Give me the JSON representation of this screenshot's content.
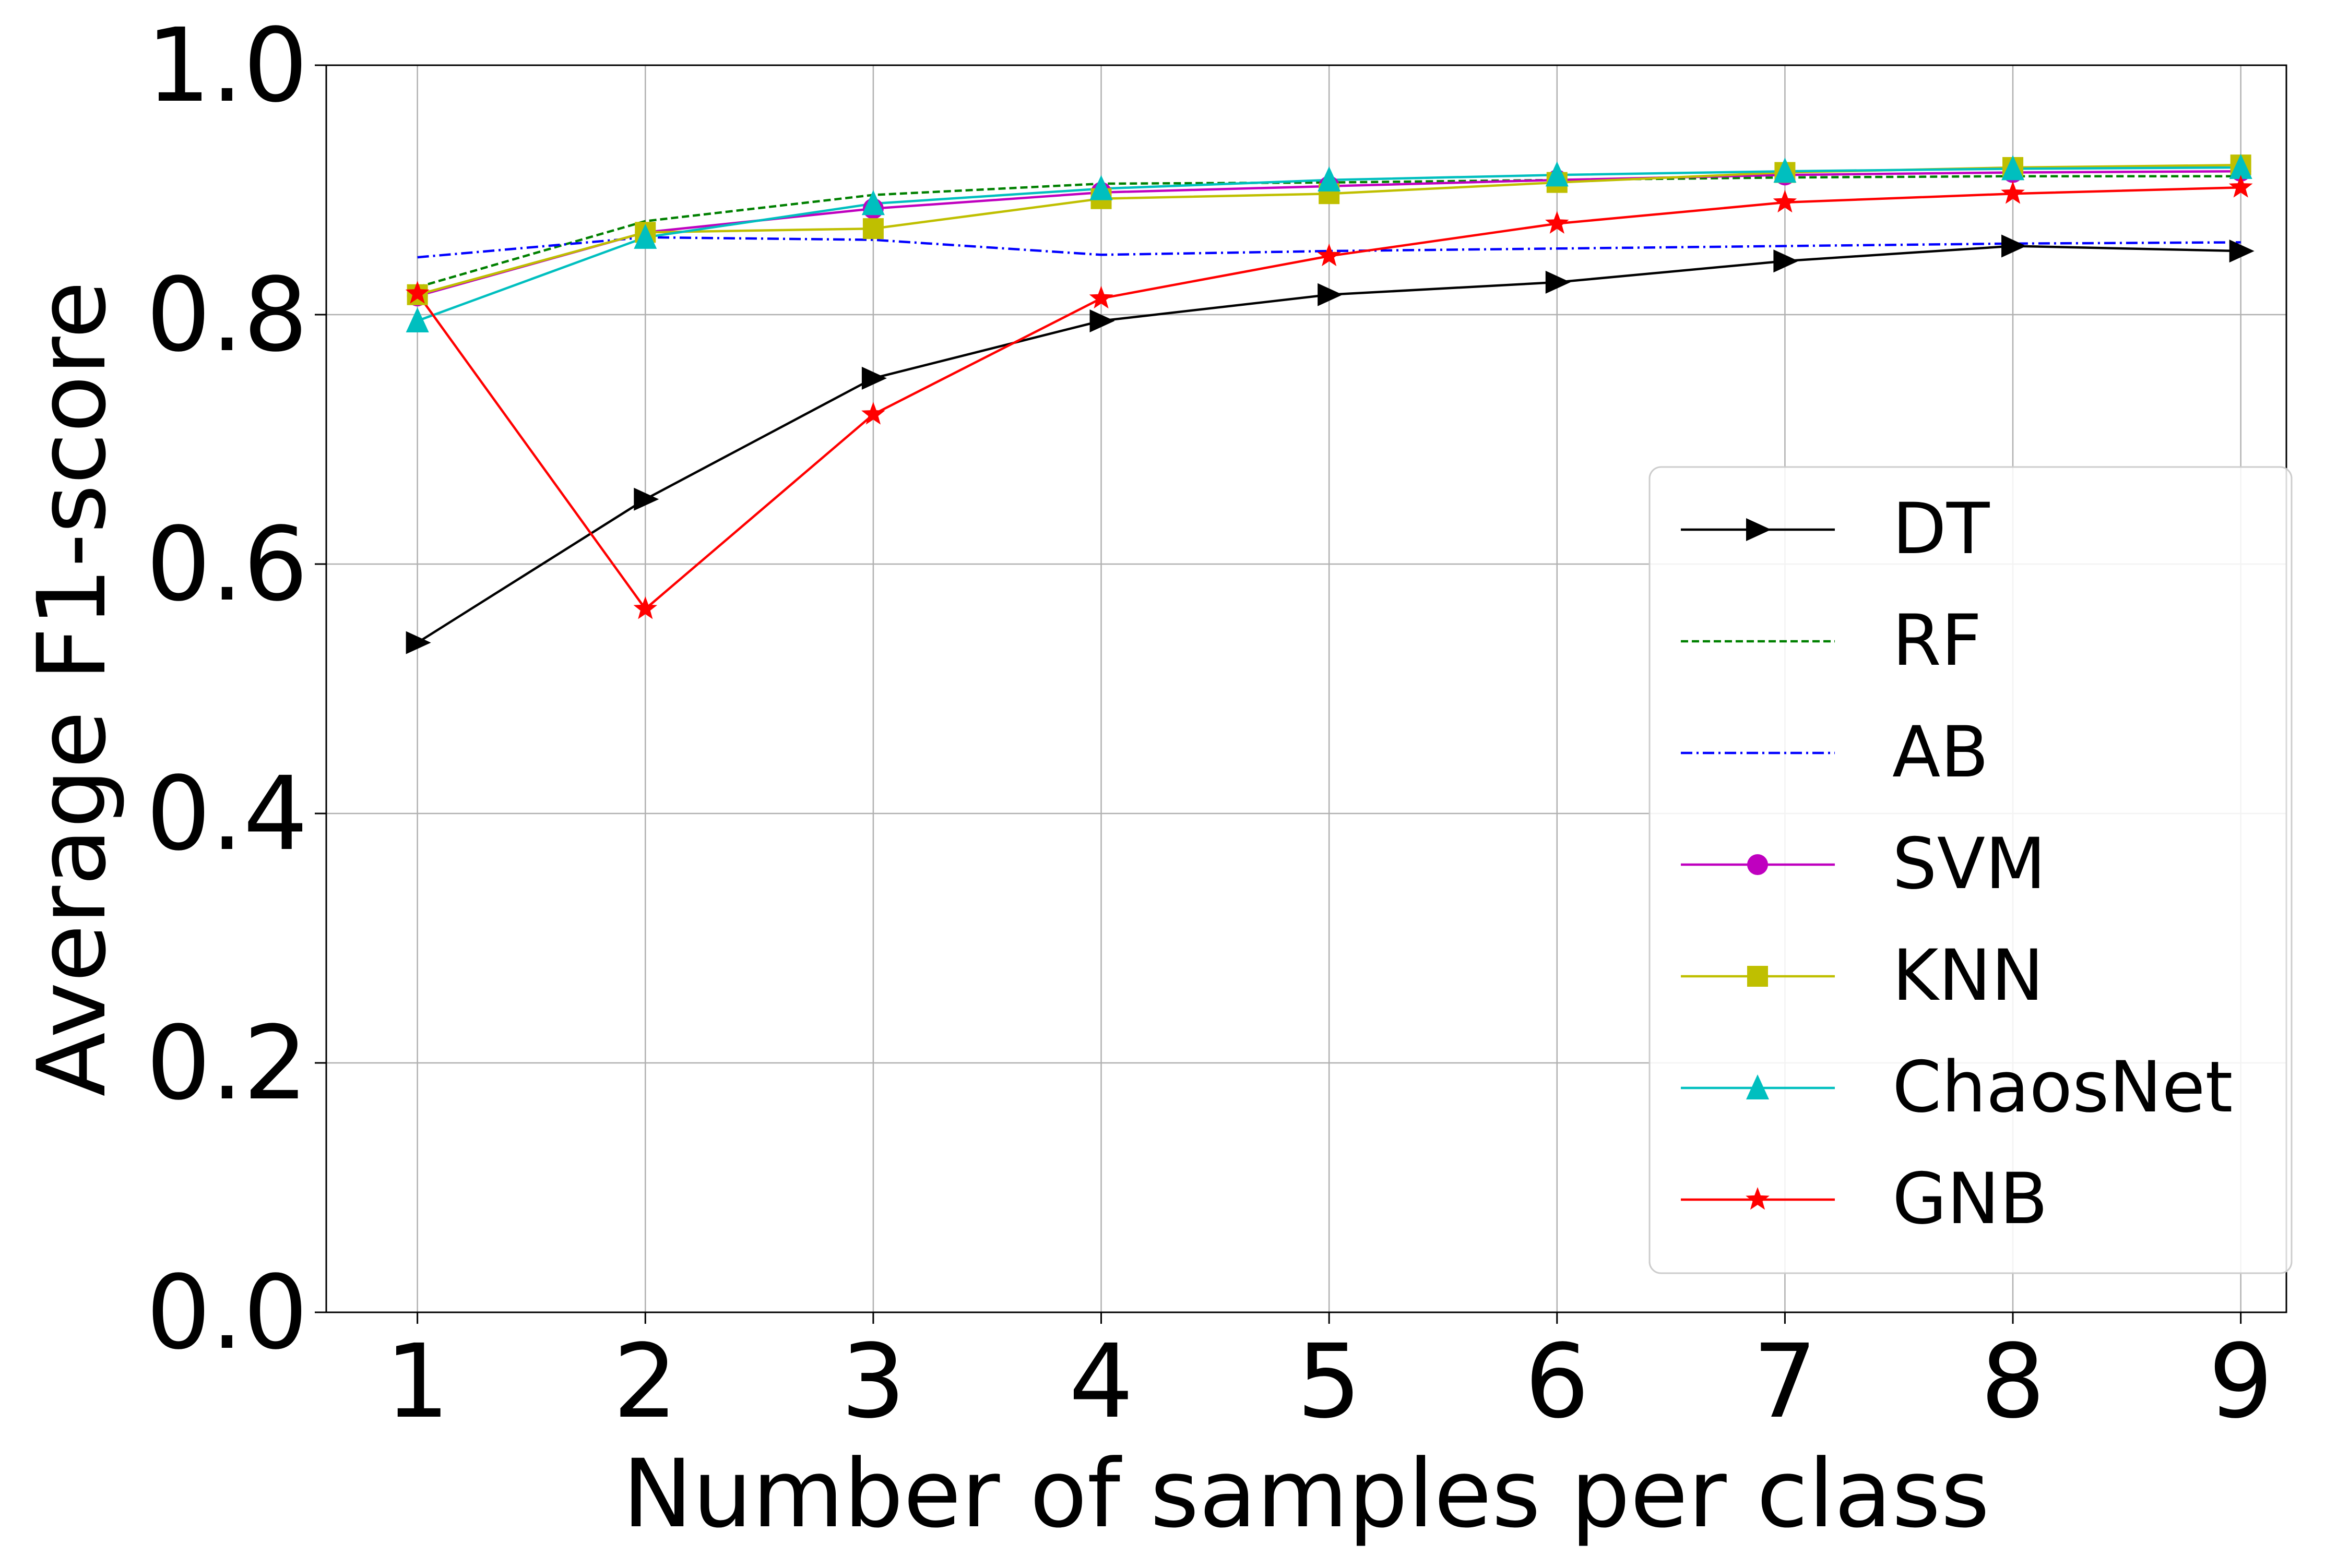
{
  "chart_data": {
    "type": "line",
    "title": "",
    "xlabel": "Number of samples per class",
    "ylabel": "Average F1-score",
    "x": [
      1,
      2,
      3,
      4,
      5,
      6,
      7,
      8,
      9
    ],
    "xlim": [
      0.6,
      9.2
    ],
    "ylim": [
      0.0,
      1.0
    ],
    "xticks": [
      "1",
      "2",
      "3",
      "4",
      "5",
      "6",
      "7",
      "8",
      "9"
    ],
    "yticks": [
      "0.0",
      "0.2",
      "0.4",
      "0.6",
      "0.8",
      "1.0"
    ],
    "grid": true,
    "legend_position": "right",
    "series": [
      {
        "name": "DT",
        "color": "#000000",
        "dash": "solid",
        "marker": "triangle-right",
        "values": [
          0.537,
          0.652,
          0.749,
          0.795,
          0.816,
          0.826,
          0.843,
          0.855,
          0.851
        ]
      },
      {
        "name": "RF",
        "color": "#008000",
        "dash": "dashed",
        "marker": "none",
        "values": [
          0.822,
          0.875,
          0.896,
          0.905,
          0.906,
          0.908,
          0.91,
          0.911,
          0.911
        ]
      },
      {
        "name": "AB",
        "color": "#0000ff",
        "dash": "dashdot",
        "marker": "none",
        "values": [
          0.846,
          0.862,
          0.86,
          0.848,
          0.851,
          0.853,
          0.855,
          0.857,
          0.858
        ]
      },
      {
        "name": "SVM",
        "color": "#bf00bf",
        "dash": "solid",
        "marker": "circle",
        "values": [
          0.815,
          0.866,
          0.885,
          0.898,
          0.903,
          0.908,
          0.912,
          0.914,
          0.915
        ]
      },
      {
        "name": "KNN",
        "color": "#bfbf00",
        "dash": "solid",
        "marker": "square",
        "values": [
          0.816,
          0.866,
          0.869,
          0.893,
          0.897,
          0.906,
          0.914,
          0.918,
          0.92
        ]
      },
      {
        "name": "ChaosNet",
        "color": "#00bfbf",
        "dash": "solid",
        "marker": "triangle-up",
        "values": [
          0.795,
          0.862,
          0.889,
          0.901,
          0.908,
          0.912,
          0.915,
          0.917,
          0.918
        ]
      },
      {
        "name": "GNB",
        "color": "#ff0000",
        "dash": "solid",
        "marker": "star",
        "values": [
          0.817,
          0.564,
          0.72,
          0.813,
          0.847,
          0.873,
          0.89,
          0.897,
          0.902
        ]
      }
    ]
  }
}
